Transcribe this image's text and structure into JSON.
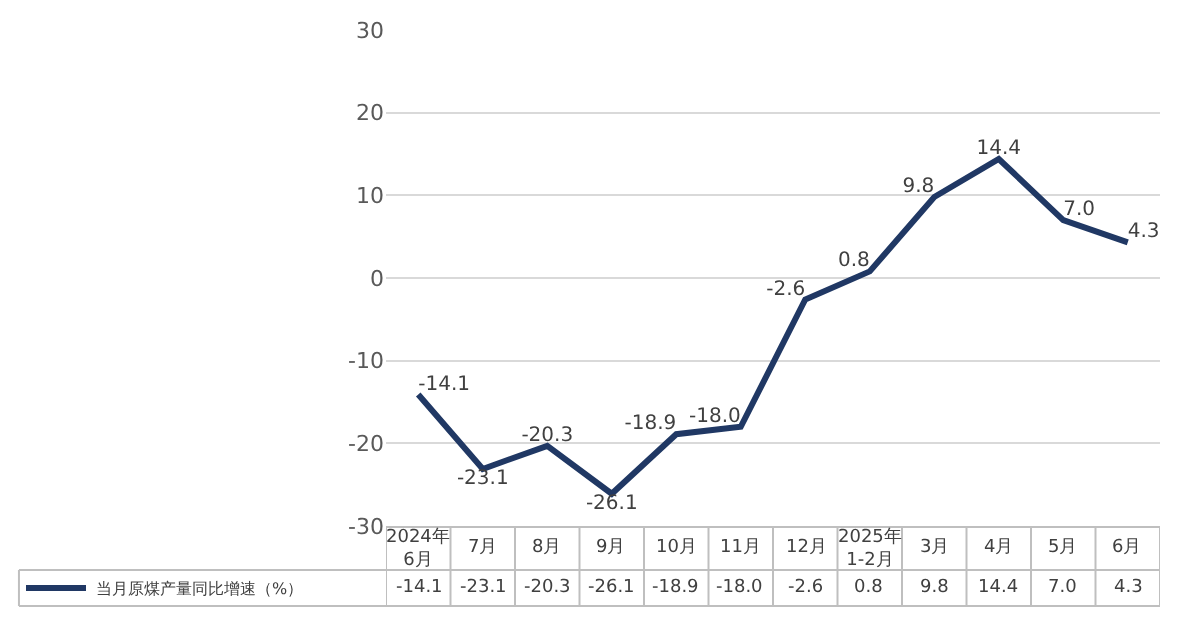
{
  "chart_data": {
    "type": "line",
    "categories": [
      "2024年\n6月",
      "7月",
      "8月",
      "9月",
      "10月",
      "11月",
      "12月",
      "2025年\n1-2月",
      "3月",
      "4月",
      "5月",
      "6月"
    ],
    "series": [
      {
        "name": "当月原煤产量同比增速（%）",
        "color": "#203864",
        "values": [
          -14.1,
          -23.1,
          -20.3,
          -26.1,
          -18.9,
          -18.0,
          -2.6,
          0.8,
          9.8,
          14.4,
          7.0,
          4.3
        ],
        "value_labels": [
          "-14.1",
          "-23.1",
          "-20.3",
          "-26.1",
          "-18.9",
          "-18.0",
          "-2.6",
          "0.8",
          "9.8",
          "14.4",
          "7.0",
          "4.3"
        ]
      }
    ],
    "ylim": [
      -30,
      30
    ],
    "yticks": [
      -30,
      -20,
      -10,
      0,
      10,
      20,
      30
    ],
    "grid": "y",
    "legend": "bottom left",
    "marker": "none",
    "line_style": "solid"
  }
}
